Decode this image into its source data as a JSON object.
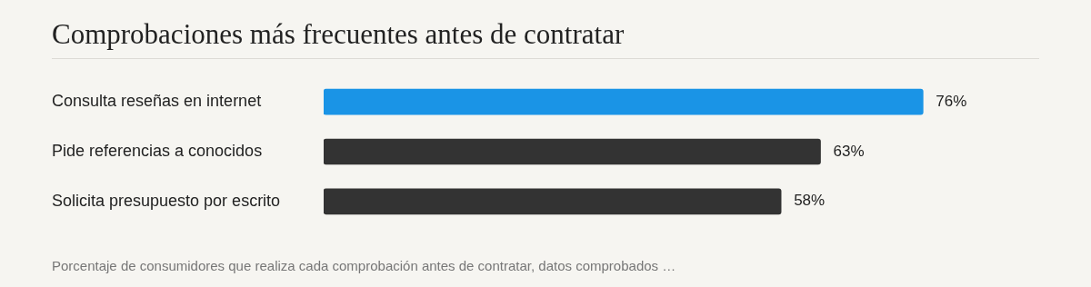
{
  "chart_data": {
    "type": "bar",
    "orientation": "horizontal",
    "title": "Comprobaciones más frecuentes antes de contratar",
    "categories": [
      "Consulta reseñas en internet",
      "Pide referencias a conocidos",
      "Solicita presupuesto por escrito"
    ],
    "values": [
      76,
      63,
      58
    ],
    "value_labels": [
      "76%",
      "63%",
      "58%"
    ],
    "colors": [
      "#1a94e6",
      "#333333",
      "#333333"
    ],
    "grid": false,
    "legend": false,
    "annotations": [
      "Porcentaje de consumidores que realiza cada comprobación antes de contratar, datos comprobados …"
    ]
  }
}
